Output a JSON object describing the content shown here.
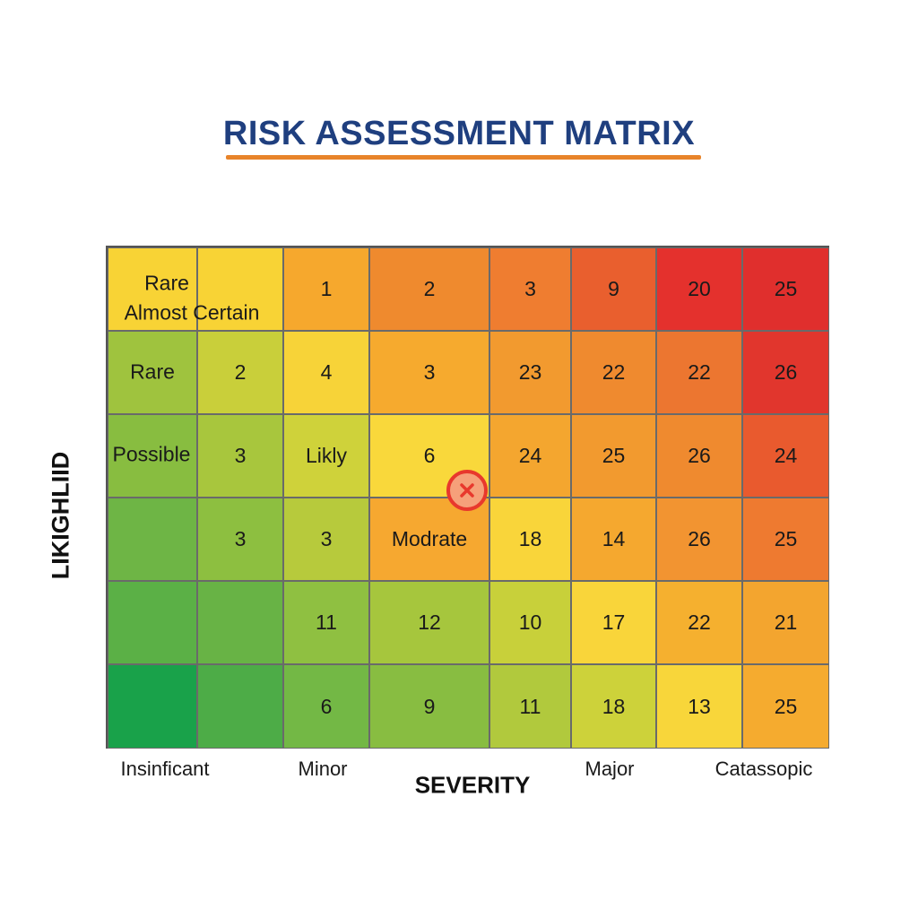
{
  "chart_data": {
    "type": "heatmap",
    "title": "RISK ASSESSMENT MATRIX",
    "xlabel": "SEVERITY",
    "ylabel": "LIKIGHLIID",
    "x_tick_labels": [
      "Insinficant",
      "Minor",
      "Major",
      "Catassopic"
    ],
    "row_labels": [
      "Rare",
      "Possible"
    ],
    "corner_labels": [
      "Rare",
      "Almost Certain"
    ],
    "rows": [
      [
        "",
        "",
        "1",
        "2",
        "3",
        "9",
        "20",
        "25"
      ],
      [
        "",
        "2",
        "4",
        "3",
        "23",
        "22",
        "22",
        "26"
      ],
      [
        "",
        "3",
        "Likly",
        "6",
        "24",
        "25",
        "26",
        "24"
      ],
      [
        "",
        "3",
        "3",
        "Modrate",
        "18",
        "14",
        "26",
        "25"
      ],
      [
        "",
        "",
        "11",
        "12",
        "10",
        "17",
        "22",
        "21"
      ],
      [
        "",
        "",
        "6",
        "9",
        "11",
        "18",
        "13",
        "25"
      ]
    ],
    "colors": [
      [
        "#f8d335",
        "#f8d335",
        "#f6a82d",
        "#ef8a2e",
        "#ef7d30",
        "#e95f2e",
        "#e4312d",
        "#e02f2d"
      ],
      [
        "#9fc33e",
        "#c9cf3a",
        "#f7d338",
        "#f6aa2e",
        "#f29a2f",
        "#ef8a2f",
        "#ec7630",
        "#e1362d"
      ],
      [
        "#88bd40",
        "#a8c63d",
        "#cfd23a",
        "#f9d83b",
        "#f4a62f",
        "#f29a2f",
        "#ef8a2f",
        "#e95a2e"
      ],
      [
        "#6eb545",
        "#8dbf40",
        "#b7ca3c",
        "#f6a830",
        "#f9d53a",
        "#f5a82f",
        "#f29431",
        "#ee7a30"
      ],
      [
        "#5bb046",
        "#68b345",
        "#8fc041",
        "#a6c63d",
        "#c8d03a",
        "#f9d53a",
        "#f5b02f",
        "#f3a52f"
      ],
      [
        "#19a24a",
        "#4dac47",
        "#73b845",
        "#88bd41",
        "#b1c93d",
        "#cdd23a",
        "#f8d63a",
        "#f5ab2f"
      ]
    ],
    "marker": {
      "row": 2,
      "col": 3,
      "icon": "x-circle-icon",
      "color": "#e8382d"
    }
  },
  "accent_color": "#e8842a",
  "title_color": "#1f3f7f"
}
